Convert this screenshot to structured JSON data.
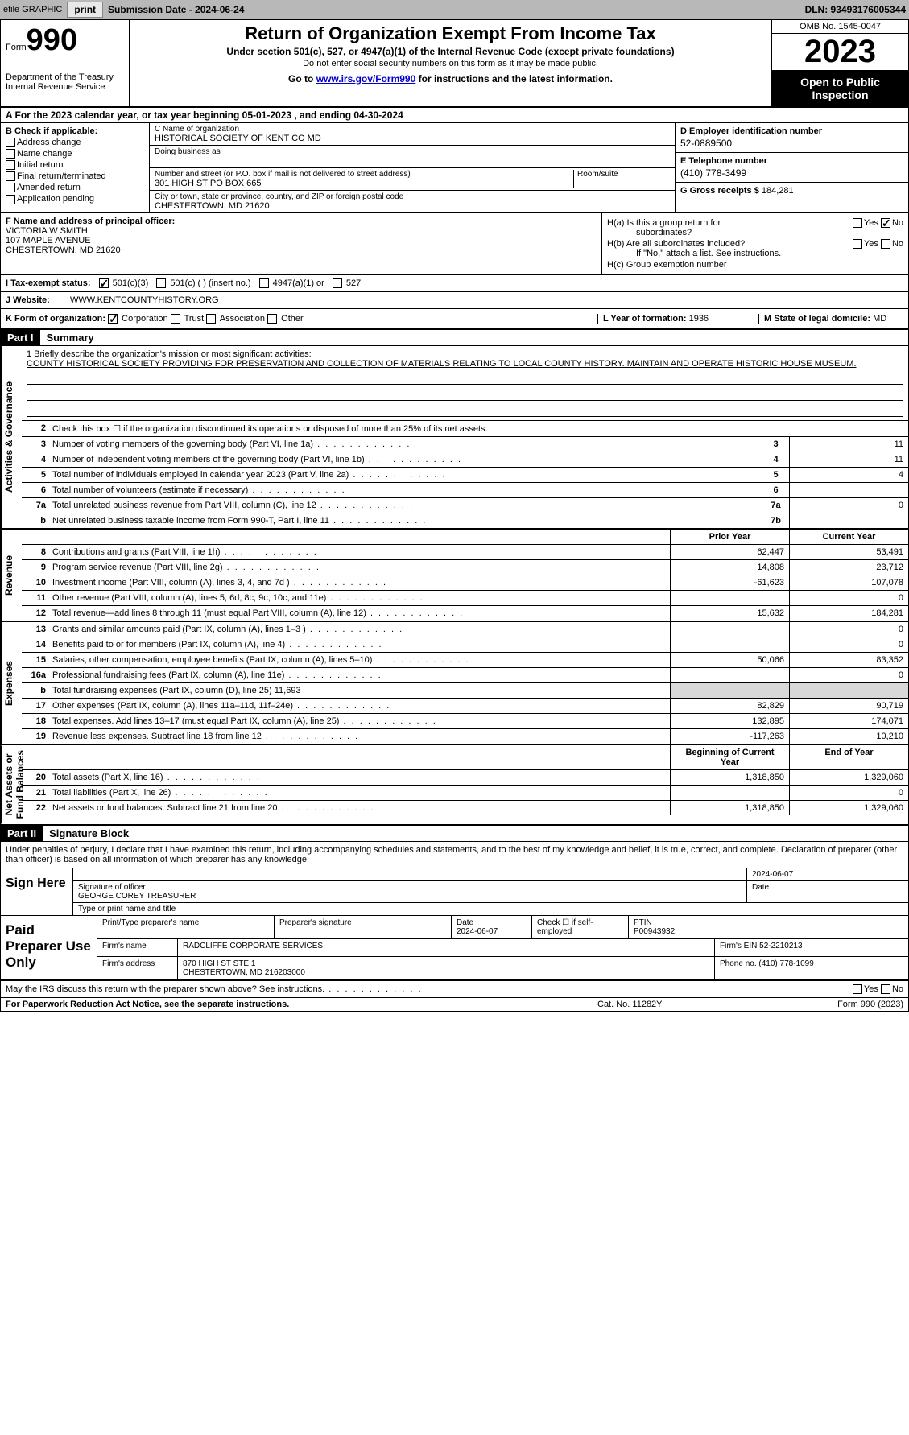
{
  "toolbar": {
    "efile": "efile GRAPHIC",
    "print": "print",
    "sub_date_label": "Submission Date - 2024-06-24",
    "dln": "DLN: 93493176005344"
  },
  "header": {
    "form_word": "Form",
    "form_num": "990",
    "dept": "Department of the Treasury\nInternal Revenue Service",
    "title": "Return of Organization Exempt From Income Tax",
    "subtitle": "Under section 501(c), 527, or 4947(a)(1) of the Internal Revenue Code (except private foundations)",
    "note": "Do not enter social security numbers on this form as it may be made public.",
    "goto_prefix": "Go to ",
    "goto_link": "www.irs.gov/Form990",
    "goto_suffix": " for instructions and the latest information.",
    "omb": "OMB No. 1545-0047",
    "year": "2023",
    "open": "Open to Public Inspection"
  },
  "row_a": "A For the 2023 calendar year, or tax year beginning 05-01-2023   , and ending 04-30-2024",
  "col_b": {
    "label": "B Check if applicable:",
    "opts": [
      "Address change",
      "Name change",
      "Initial return",
      "Final return/terminated",
      "Amended return",
      "Application pending"
    ]
  },
  "col_c": {
    "name_lbl": "C Name of organization",
    "name": "HISTORICAL SOCIETY OF KENT CO MD",
    "dba_lbl": "Doing business as",
    "addr_lbl": "Number and street (or P.O. box if mail is not delivered to street address)",
    "room_lbl": "Room/suite",
    "addr": "301 HIGH ST PO BOX 665",
    "city_lbl": "City or town, state or province, country, and ZIP or foreign postal code",
    "city": "CHESTERTOWN, MD  21620"
  },
  "col_d": {
    "ein_lbl": "D Employer identification number",
    "ein": "52-0889500",
    "phone_lbl": "E Telephone number",
    "phone": "(410) 778-3499",
    "gross_lbl": "G Gross receipts $",
    "gross": "184,281"
  },
  "col_f": {
    "lbl": "F  Name and address of principal officer:",
    "name": "VICTORIA W SMITH",
    "addr1": "107 MAPLE AVENUE",
    "addr2": "CHESTERTOWN, MD  21620"
  },
  "col_h": {
    "ha": "H(a)  Is this a group return for",
    "ha2": "subordinates?",
    "hb": "H(b)  Are all subordinates included?",
    "hb2": "If \"No,\" attach a list. See instructions.",
    "hc": "H(c)  Group exemption number",
    "yes": "Yes",
    "no": "No"
  },
  "row_i": {
    "lbl": "I   Tax-exempt status:",
    "o1": "501(c)(3)",
    "o2": "501(c) (  ) (insert no.)",
    "o3": "4947(a)(1) or",
    "o4": "527"
  },
  "row_j": {
    "lbl": "J   Website:",
    "val": "WWW.KENTCOUNTYHISTORY.ORG"
  },
  "row_k": {
    "lbl": "K Form of organization:",
    "o1": "Corporation",
    "o2": "Trust",
    "o3": "Association",
    "o4": "Other",
    "year_lbl": "L Year of formation:",
    "year": "1936",
    "state_lbl": "M State of legal domicile:",
    "state": "MD"
  },
  "parts": {
    "p1": "Part I",
    "p1_title": "Summary",
    "p2": "Part II",
    "p2_title": "Signature Block"
  },
  "mission": {
    "lbl": "1   Briefly describe the organization's mission or most significant activities:",
    "txt": "COUNTY HISTORICAL SOCIETY PROVIDING FOR PRESERVATION AND COLLECTION OF MATERIALS RELATING TO LOCAL COUNTY HISTORY. MAINTAIN AND OPERATE HISTORIC HOUSE MUSEUM."
  },
  "side_labels": {
    "ag": "Activities & Governance",
    "rev": "Revenue",
    "exp": "Expenses",
    "na": "Net Assets or\nFund Balances"
  },
  "gov_lines": [
    {
      "n": "2",
      "d": "Check this box  ☐  if the organization discontinued its operations or disposed of more than 25% of its net assets."
    },
    {
      "n": "3",
      "d": "Number of voting members of the governing body (Part VI, line 1a)",
      "box": "3",
      "v": "11"
    },
    {
      "n": "4",
      "d": "Number of independent voting members of the governing body (Part VI, line 1b)",
      "box": "4",
      "v": "11"
    },
    {
      "n": "5",
      "d": "Total number of individuals employed in calendar year 2023 (Part V, line 2a)",
      "box": "5",
      "v": "4"
    },
    {
      "n": "6",
      "d": "Total number of volunteers (estimate if necessary)",
      "box": "6",
      "v": ""
    },
    {
      "n": "7a",
      "d": "Total unrelated business revenue from Part VIII, column (C), line 12",
      "box": "7a",
      "v": "0"
    },
    {
      "n": "b",
      "d": "Net unrelated business taxable income from Form 990-T, Part I, line 11",
      "box": "7b",
      "v": ""
    }
  ],
  "col_hdrs": {
    "prior": "Prior Year",
    "current": "Current Year",
    "boy": "Beginning of Current Year",
    "eoy": "End of Year"
  },
  "rev_lines": [
    {
      "n": "8",
      "d": "Contributions and grants (Part VIII, line 1h)",
      "p": "62,447",
      "c": "53,491"
    },
    {
      "n": "9",
      "d": "Program service revenue (Part VIII, line 2g)",
      "p": "14,808",
      "c": "23,712"
    },
    {
      "n": "10",
      "d": "Investment income (Part VIII, column (A), lines 3, 4, and 7d )",
      "p": "-61,623",
      "c": "107,078"
    },
    {
      "n": "11",
      "d": "Other revenue (Part VIII, column (A), lines 5, 6d, 8c, 9c, 10c, and 11e)",
      "p": "",
      "c": "0"
    },
    {
      "n": "12",
      "d": "Total revenue—add lines 8 through 11 (must equal Part VIII, column (A), line 12)",
      "p": "15,632",
      "c": "184,281"
    }
  ],
  "exp_lines": [
    {
      "n": "13",
      "d": "Grants and similar amounts paid (Part IX, column (A), lines 1–3 )",
      "p": "",
      "c": "0"
    },
    {
      "n": "14",
      "d": "Benefits paid to or for members (Part IX, column (A), line 4)",
      "p": "",
      "c": "0"
    },
    {
      "n": "15",
      "d": "Salaries, other compensation, employee benefits (Part IX, column (A), lines 5–10)",
      "p": "50,066",
      "c": "83,352"
    },
    {
      "n": "16a",
      "d": "Professional fundraising fees (Part IX, column (A), line 11e)",
      "p": "",
      "c": "0"
    },
    {
      "n": "b",
      "d": "Total fundraising expenses (Part IX, column (D), line 25) 11,693",
      "grey": true
    },
    {
      "n": "17",
      "d": "Other expenses (Part IX, column (A), lines 11a–11d, 11f–24e)",
      "p": "82,829",
      "c": "90,719"
    },
    {
      "n": "18",
      "d": "Total expenses. Add lines 13–17 (must equal Part IX, column (A), line 25)",
      "p": "132,895",
      "c": "174,071"
    },
    {
      "n": "19",
      "d": "Revenue less expenses. Subtract line 18 from line 12",
      "p": "-117,263",
      "c": "10,210"
    }
  ],
  "na_lines": [
    {
      "n": "20",
      "d": "Total assets (Part X, line 16)",
      "p": "1,318,850",
      "c": "1,329,060"
    },
    {
      "n": "21",
      "d": "Total liabilities (Part X, line 26)",
      "p": "",
      "c": "0"
    },
    {
      "n": "22",
      "d": "Net assets or fund balances. Subtract line 21 from line 20",
      "p": "1,318,850",
      "c": "1,329,060"
    }
  ],
  "sig_intro": "Under penalties of perjury, I declare that I have examined this return, including accompanying schedules and statements, and to the best of my knowledge and belief, it is true, correct, and complete. Declaration of preparer (other than officer) is based on all information of which preparer has any knowledge.",
  "sign_here": "Sign Here",
  "sig": {
    "date": "2024-06-07",
    "sig_lbl": "Signature of officer",
    "name": "GEORGE COREY  TREASURER",
    "title_lbl": "Type or print name and title",
    "date_lbl": "Date"
  },
  "paid": {
    "title": "Paid Preparer Use Only",
    "name_lbl": "Print/Type preparer's name",
    "sig_lbl": "Preparer's signature",
    "date_lbl": "Date",
    "date": "2024-06-07",
    "check_lbl": "Check ☐ if self-employed",
    "ptin_lbl": "PTIN",
    "ptin": "P00943932",
    "firm_lbl": "Firm's name",
    "firm": "RADCLIFFE CORPORATE SERVICES",
    "ein_lbl": "Firm's EIN",
    "ein": "52-2210213",
    "addr_lbl": "Firm's address",
    "addr1": "870 HIGH ST STE 1",
    "addr2": "CHESTERTOWN, MD  216203000",
    "phone_lbl": "Phone no.",
    "phone": "(410) 778-1099"
  },
  "discuss": {
    "txt": "May the IRS discuss this return with the preparer shown above? See instructions.",
    "yes": "Yes",
    "no": "No"
  },
  "footer": {
    "left": "For Paperwork Reduction Act Notice, see the separate instructions.",
    "mid": "Cat. No. 11282Y",
    "right_form": "Form 990 (2023)"
  }
}
